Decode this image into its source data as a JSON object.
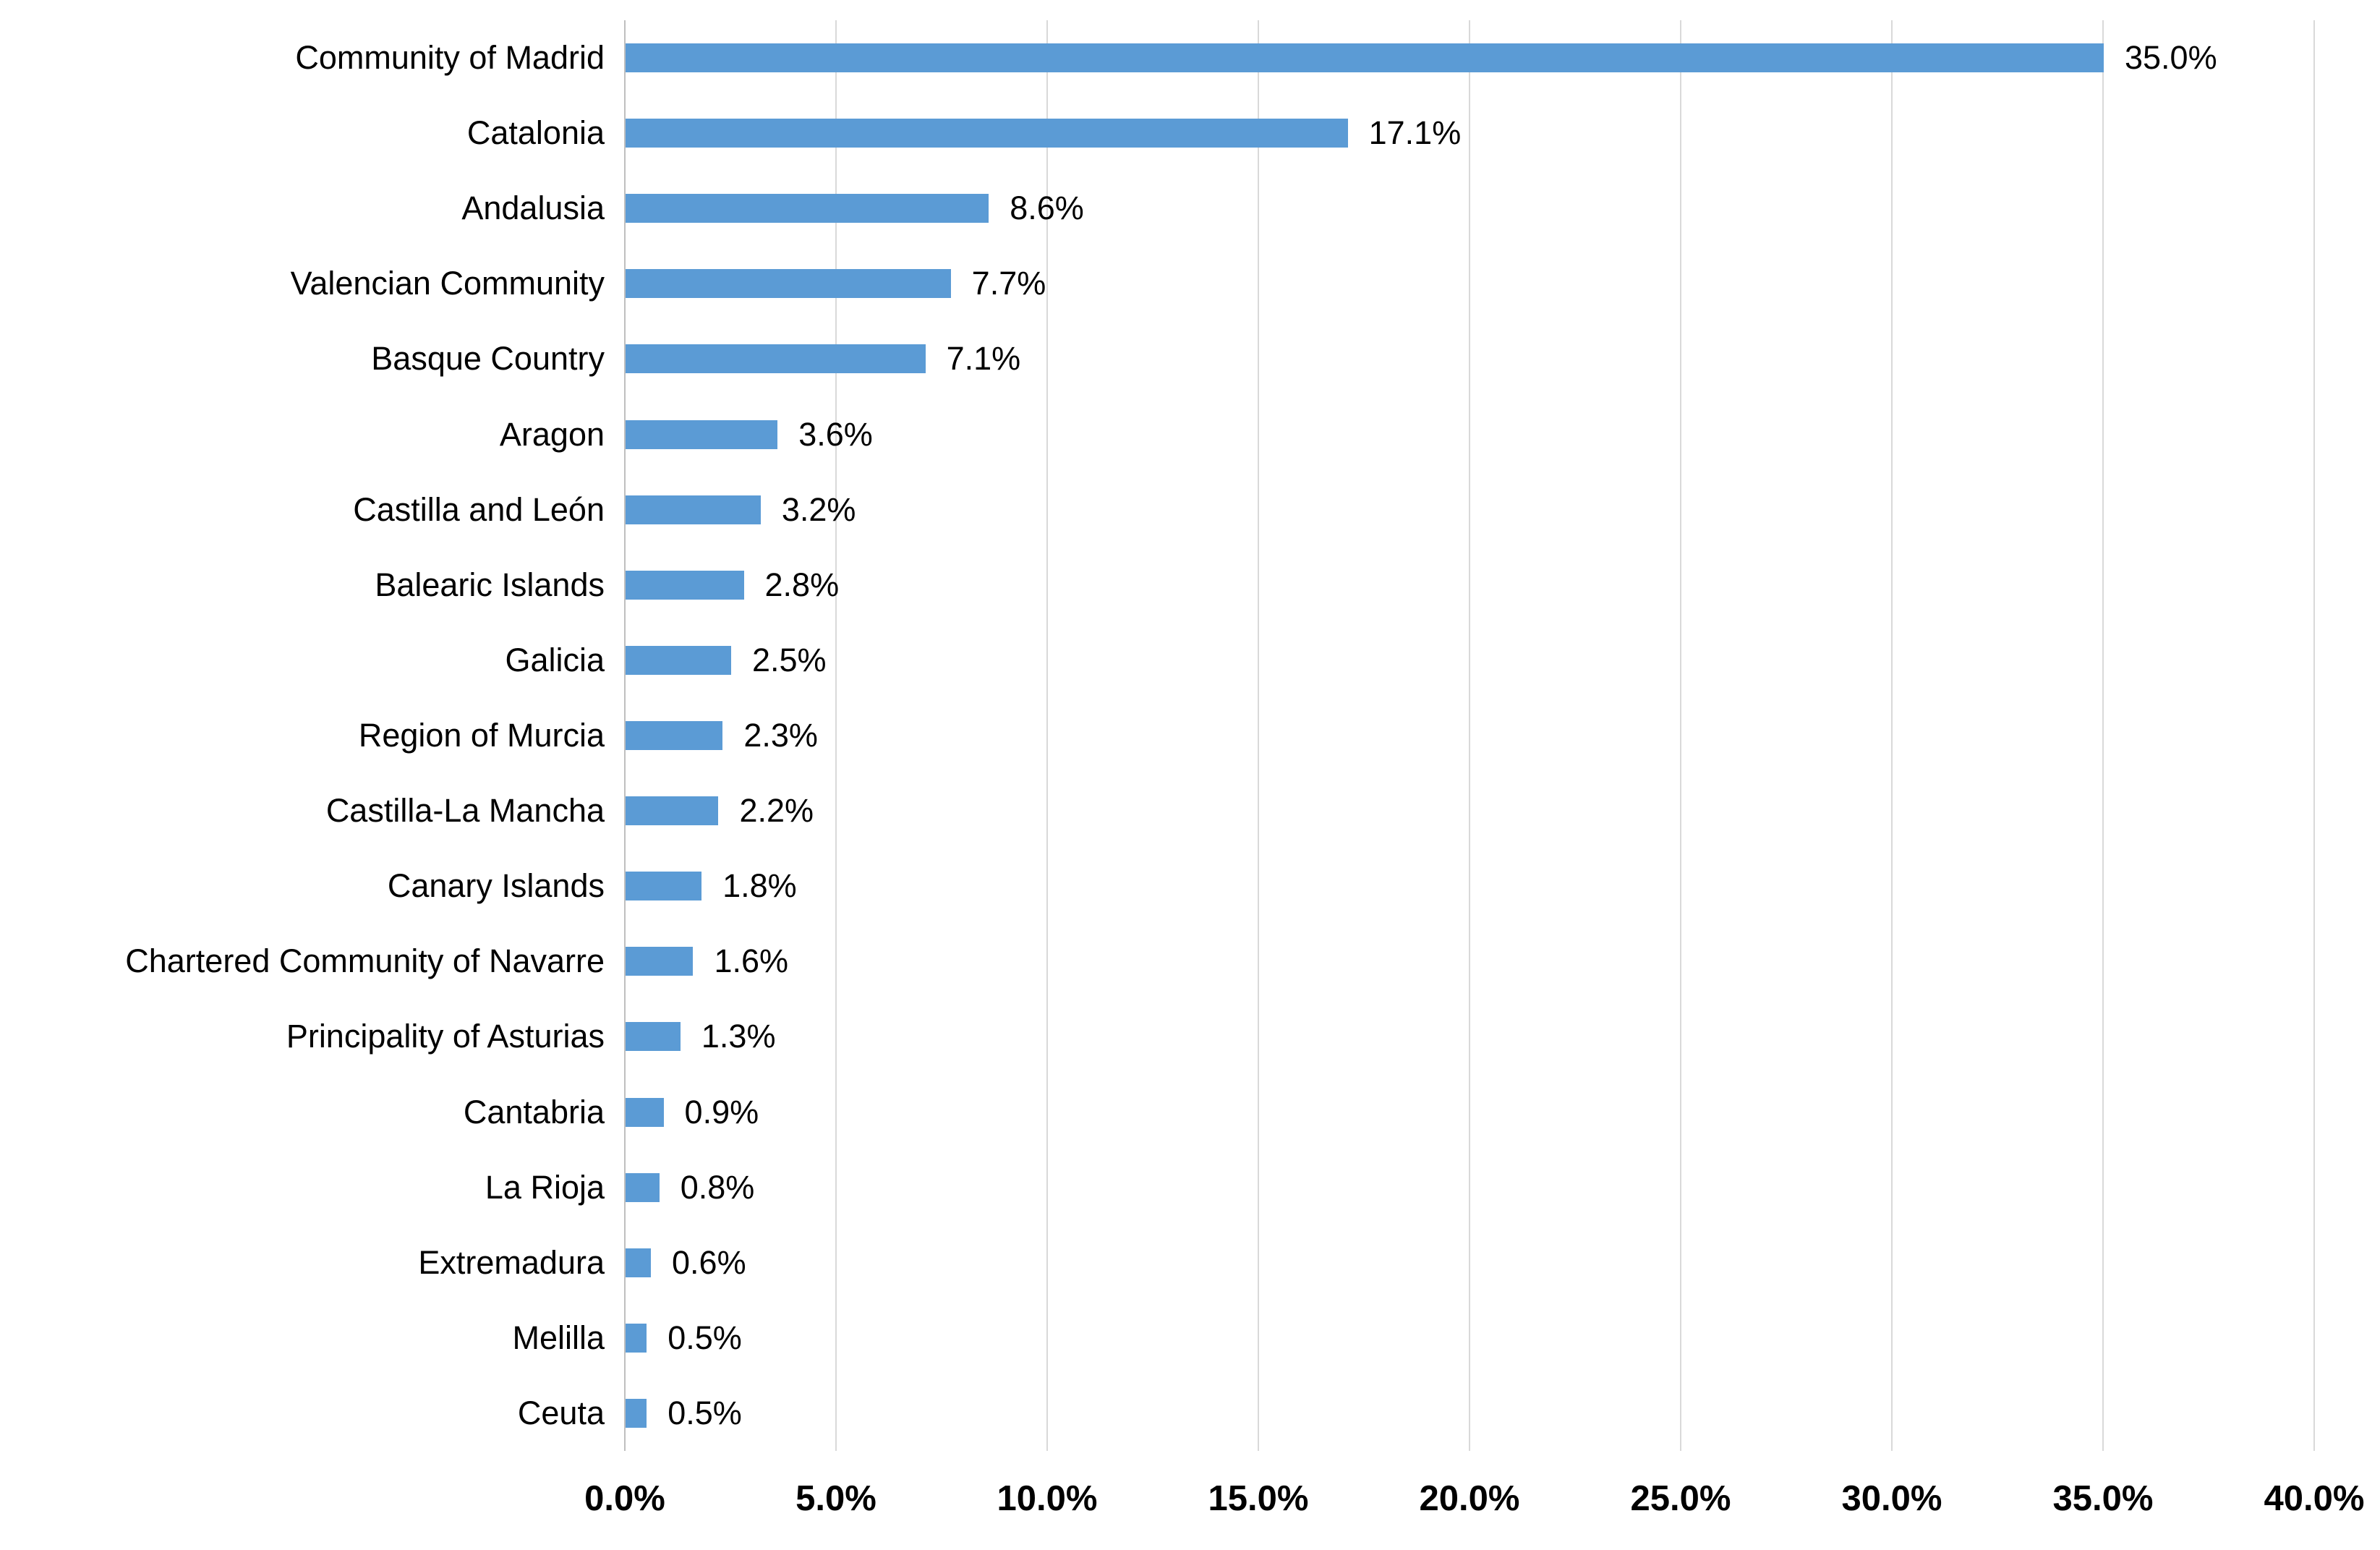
{
  "chart_data": {
    "type": "bar",
    "orientation": "horizontal",
    "title": "",
    "xlabel": "",
    "ylabel": "",
    "legend_position": "none",
    "grid": "vertical-only",
    "categories": [
      "Community of Madrid",
      "Catalonia",
      "Andalusia",
      "Valencian Community",
      "Basque Country",
      "Aragon",
      "Castilla and León",
      "Balearic Islands",
      "Galicia",
      "Region of Murcia",
      "Castilla-La Mancha",
      "Canary Islands",
      "Chartered Community of Navarre",
      "Principality of Asturias",
      "Cantabria",
      "La Rioja",
      "Extremadura",
      "Melilla",
      "Ceuta"
    ],
    "values": [
      35.0,
      17.1,
      8.6,
      7.7,
      7.1,
      3.6,
      3.2,
      2.8,
      2.5,
      2.3,
      2.2,
      1.8,
      1.6,
      1.3,
      0.9,
      0.8,
      0.6,
      0.5,
      0.5
    ],
    "value_labels": [
      "35.0%",
      "17.1%",
      "8.6%",
      "7.7%",
      "7.1%",
      "3.6%",
      "3.2%",
      "2.8%",
      "2.5%",
      "2.3%",
      "2.2%",
      "1.8%",
      "1.6%",
      "1.3%",
      "0.9%",
      "0.8%",
      "0.6%",
      "0.5%",
      "0.5%"
    ],
    "x_ticks": [
      "0.0%",
      "5.0%",
      "10.0%",
      "15.0%",
      "20.0%",
      "25.0%",
      "30.0%",
      "35.0%",
      "40.0%"
    ],
    "x_tick_values": [
      0,
      5,
      10,
      15,
      20,
      25,
      30,
      35,
      40
    ],
    "xlim": [
      0,
      40
    ],
    "colors": {
      "bar": "#5B9BD5",
      "gridline": "#D9D9D9",
      "axis_line": "#BFBFBF",
      "text": "#000000",
      "background": "#FFFFFF"
    }
  }
}
